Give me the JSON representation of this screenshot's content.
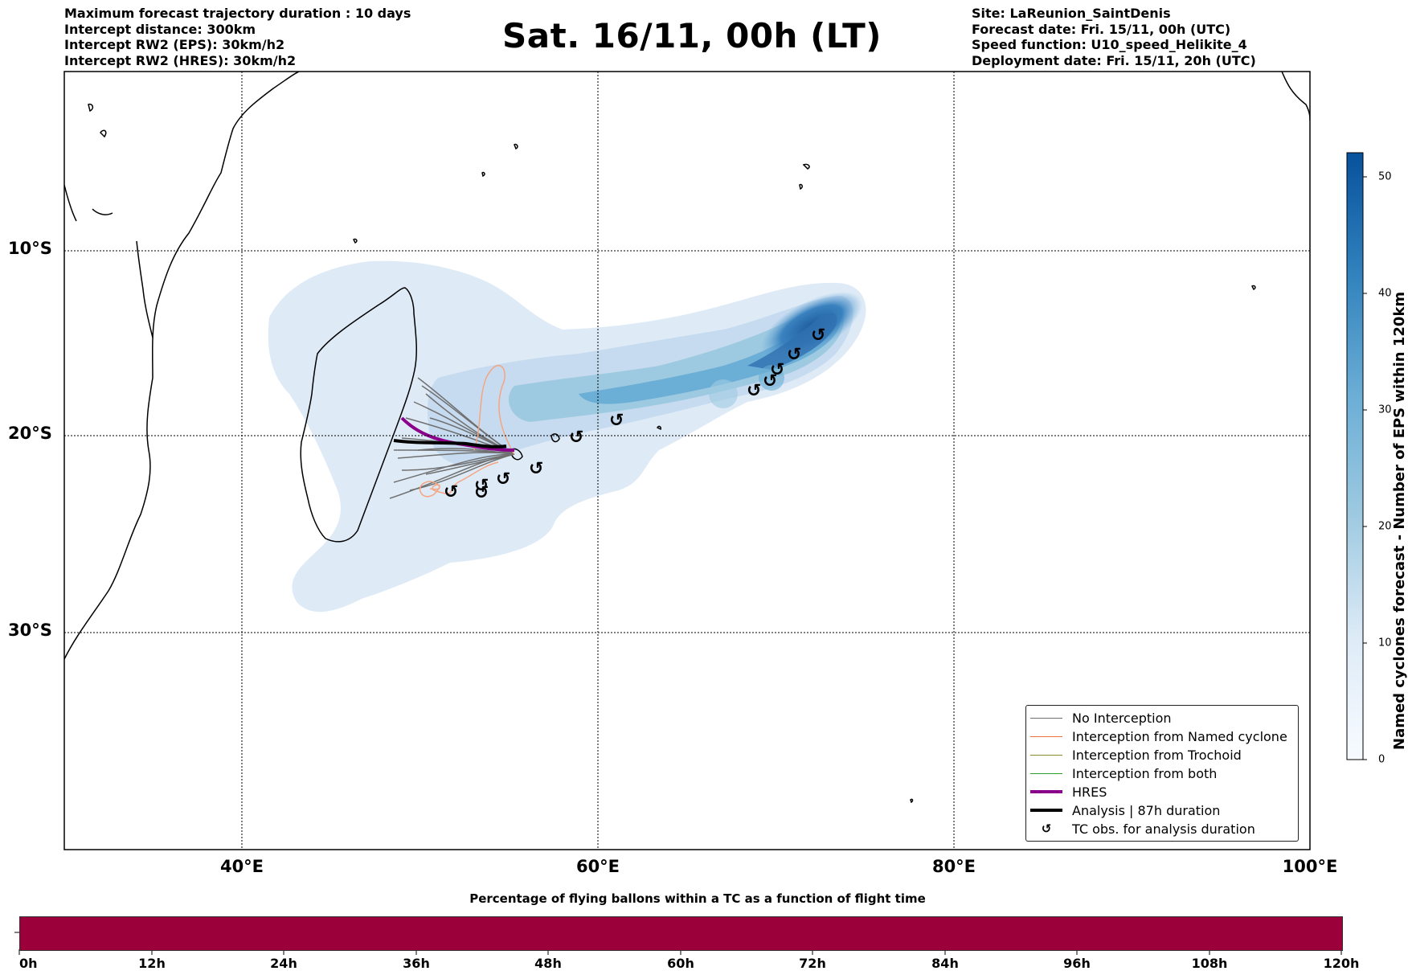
{
  "header_left": {
    "line1": "Maximum forecast trajectory duration : 10 days",
    "line2": "Intercept distance: 300km",
    "line3": "Intercept RW2 (EPS):  30km/h2",
    "line4": "Intercept RW2 (HRES): 30km/h2"
  },
  "title": "Sat. 16/11, 00h (LT)",
  "header_right": {
    "line1": "Site: LaReunion_SaintDenis",
    "line2": "Forecast date: Fri. 15/11, 00h (UTC)",
    "line3": "Speed function: U10_speed_Helikite_4",
    "line4": "Deployment date: Fri. 15/11, 20h (UTC)"
  },
  "map": {
    "lat_labels": [
      "10°S",
      "20°S",
      "30°S"
    ],
    "lon_labels": [
      "40°E",
      "60°E",
      "80°E",
      "100°E"
    ],
    "grid": "dotted"
  },
  "legend": [
    {
      "label": "No Interception",
      "color": "#707070",
      "style": "thin"
    },
    {
      "label": "Interception from Named cyclone",
      "color": "#f07040",
      "style": "thin"
    },
    {
      "label": "Interception from Trochoid",
      "color": "#8a8a2a",
      "style": "thin"
    },
    {
      "label": "Interception from both",
      "color": "#2ca02c",
      "style": "thin"
    },
    {
      "label": "HRES",
      "color": "#8b008b",
      "style": "thick"
    },
    {
      "label": "Analysis | 87h duration",
      "color": "#000000",
      "style": "thick"
    },
    {
      "label": "TC obs. for analysis duration",
      "color": "#000000",
      "style": "symbol",
      "symbol": "↺"
    }
  ],
  "colorbar": {
    "title": "Named cyclones forecast - Number of EPS within 120km",
    "ticks": [
      "0",
      "10",
      "20",
      "30",
      "40",
      "50"
    ],
    "range": [
      0,
      52
    ],
    "colormap": "Blues"
  },
  "bottom": {
    "title": "Percentage of flying ballons within a TC as a function of flight time",
    "bar_color": "#9c003a",
    "labels": [
      "0h",
      "12h",
      "24h",
      "36h",
      "48h",
      "60h",
      "72h",
      "84h",
      "96h",
      "108h",
      "120h"
    ]
  }
}
